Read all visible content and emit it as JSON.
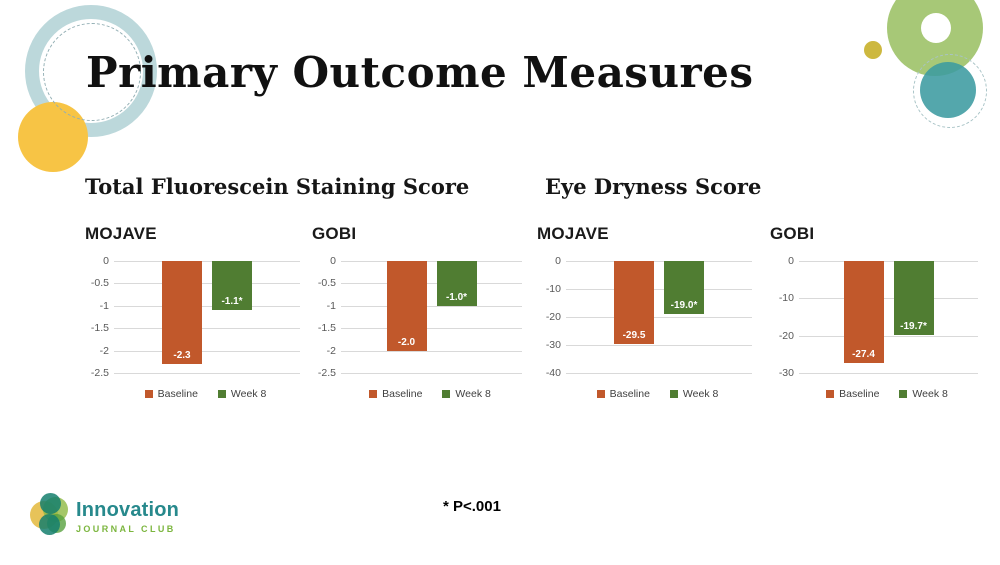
{
  "slide": {
    "title": "Primary Outcome Measures",
    "section_titles": [
      "Total Fluorescein Staining Score",
      "Eye Dryness Score"
    ],
    "footnote": "* P<.001"
  },
  "logo": {
    "title": "Innovation",
    "subtitle": "JOURNAL CLUB"
  },
  "colors": {
    "baseline_bar": "#C1582B",
    "week8_bar": "#507D32",
    "gridline": "#D9D9D9",
    "tick_text": "#595959",
    "legend_text": "#404040",
    "logo_teal": "#27898C",
    "logo_green": "#7CB63F",
    "deco_ring": "#BCD8DB",
    "deco_yellow": "#F7C445",
    "deco_green": "#A7C877",
    "deco_teal": "#3C9BA0"
  },
  "chart_data": [
    {
      "type": "bar",
      "title": "MOJAVE",
      "section": "Total Fluorescein Staining Score",
      "categories": [
        "Baseline",
        "Week 8"
      ],
      "values": [
        -2.3,
        -1.1
      ],
      "bar_labels": [
        "-2.3",
        "-1.1*"
      ],
      "ytick_labels": [
        "0",
        "-0.5",
        "-1",
        "-1.5",
        "-2",
        "-2.5"
      ],
      "ylim": [
        -2.5,
        0
      ],
      "legend": [
        "Baseline",
        "Week 8"
      ],
      "series_colors": [
        "#C1582B",
        "#507D32"
      ],
      "grid": true,
      "legend_position": "bottom"
    },
    {
      "type": "bar",
      "title": "GOBI",
      "section": "Total Fluorescein Staining Score",
      "categories": [
        "Baseline",
        "Week 8"
      ],
      "values": [
        -2.0,
        -1.0
      ],
      "bar_labels": [
        "-2.0",
        "-1.0*"
      ],
      "ytick_labels": [
        "0",
        "-0.5",
        "-1",
        "-1.5",
        "-2",
        "-2.5"
      ],
      "ylim": [
        -2.5,
        0
      ],
      "legend": [
        "Baseline",
        "Week 8"
      ],
      "series_colors": [
        "#C1582B",
        "#507D32"
      ],
      "grid": true,
      "legend_position": "bottom"
    },
    {
      "type": "bar",
      "title": "MOJAVE",
      "section": "Eye Dryness Score",
      "categories": [
        "Baseline",
        "Week 8"
      ],
      "values": [
        -29.5,
        -19.0
      ],
      "bar_labels": [
        "-29.5",
        "-19.0*"
      ],
      "ytick_labels": [
        "0",
        "-10",
        "-20",
        "-30",
        "-40"
      ],
      "ylim": [
        -40,
        0
      ],
      "legend": [
        "Baseline",
        "Week 8"
      ],
      "series_colors": [
        "#C1582B",
        "#507D32"
      ],
      "grid": true,
      "legend_position": "bottom"
    },
    {
      "type": "bar",
      "title": "GOBI",
      "section": "Eye Dryness Score",
      "categories": [
        "Baseline",
        "Week 8"
      ],
      "values": [
        -27.4,
        -19.7
      ],
      "bar_labels": [
        "-27.4",
        "-19.7*"
      ],
      "ytick_labels": [
        "0",
        "-10",
        "-20",
        "-30"
      ],
      "ylim": [
        -30,
        0
      ],
      "legend": [
        "Baseline",
        "Week 8"
      ],
      "series_colors": [
        "#C1582B",
        "#507D32"
      ],
      "grid": true,
      "legend_position": "bottom"
    }
  ]
}
